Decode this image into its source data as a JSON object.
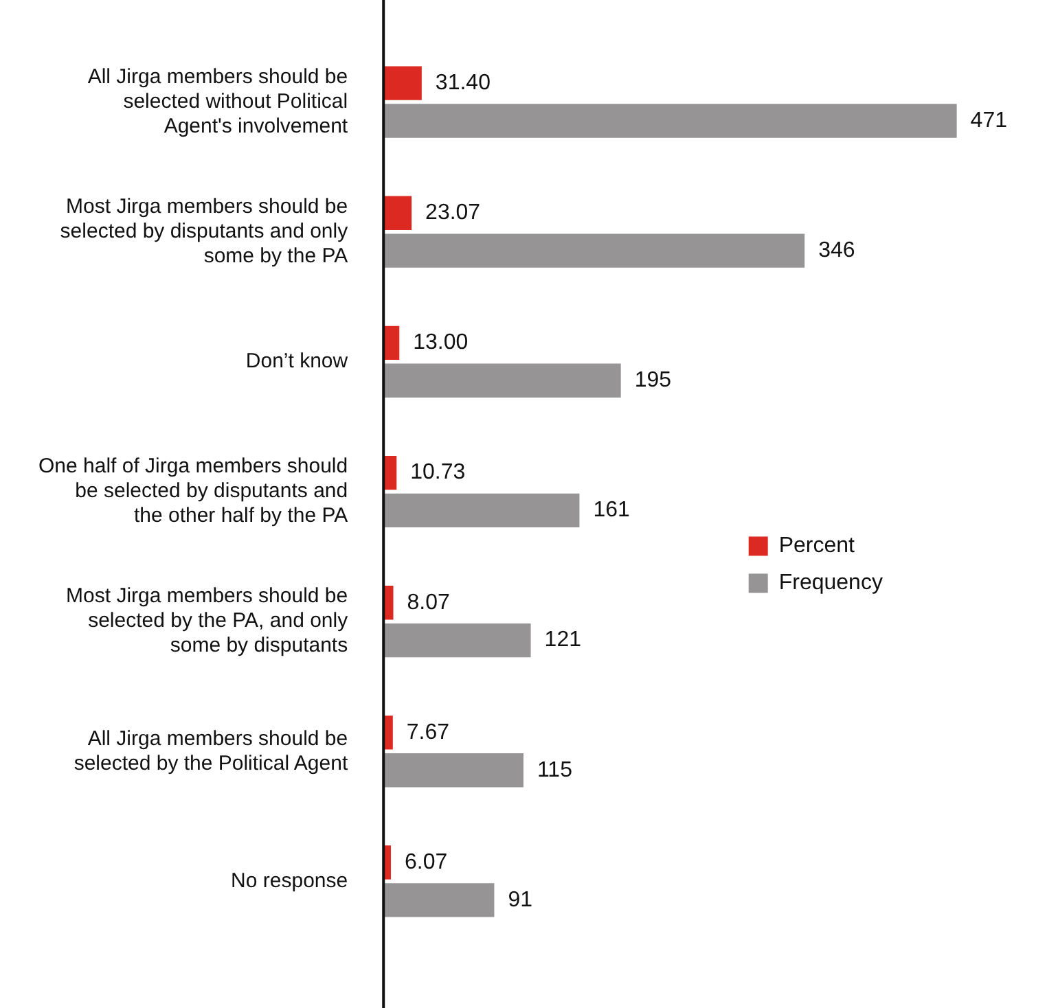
{
  "chart_data": {
    "type": "bar",
    "orientation": "horizontal",
    "legend": "right",
    "categories": [
      "All Jirga members should be selected without Political Agent's involvement",
      "Most Jirga members should be selected by disputants and only some by the PA",
      "Don’t know",
      "One half of Jirga members should be selected by disputants and the other half by the PA",
      "Most Jirga members should be selected by the PA, and only some by disputants",
      "All Jirga members should be selected by the Political Agent",
      "No response"
    ],
    "series": [
      {
        "name": "Percent",
        "color": "#dc2a23",
        "values": [
          31.4,
          23.07,
          13.0,
          10.73,
          8.07,
          7.67,
          6.07
        ],
        "value_labels": [
          "31.40",
          "23.07",
          "13.00",
          "10.73",
          "8.07",
          "7.67",
          "6.07"
        ]
      },
      {
        "name": "Frequency",
        "color": "#969494",
        "values": [
          471,
          346,
          195,
          161,
          121,
          115,
          91
        ],
        "value_labels": [
          "471",
          "346",
          "195",
          "161",
          "121",
          "115",
          "91"
        ]
      }
    ]
  }
}
